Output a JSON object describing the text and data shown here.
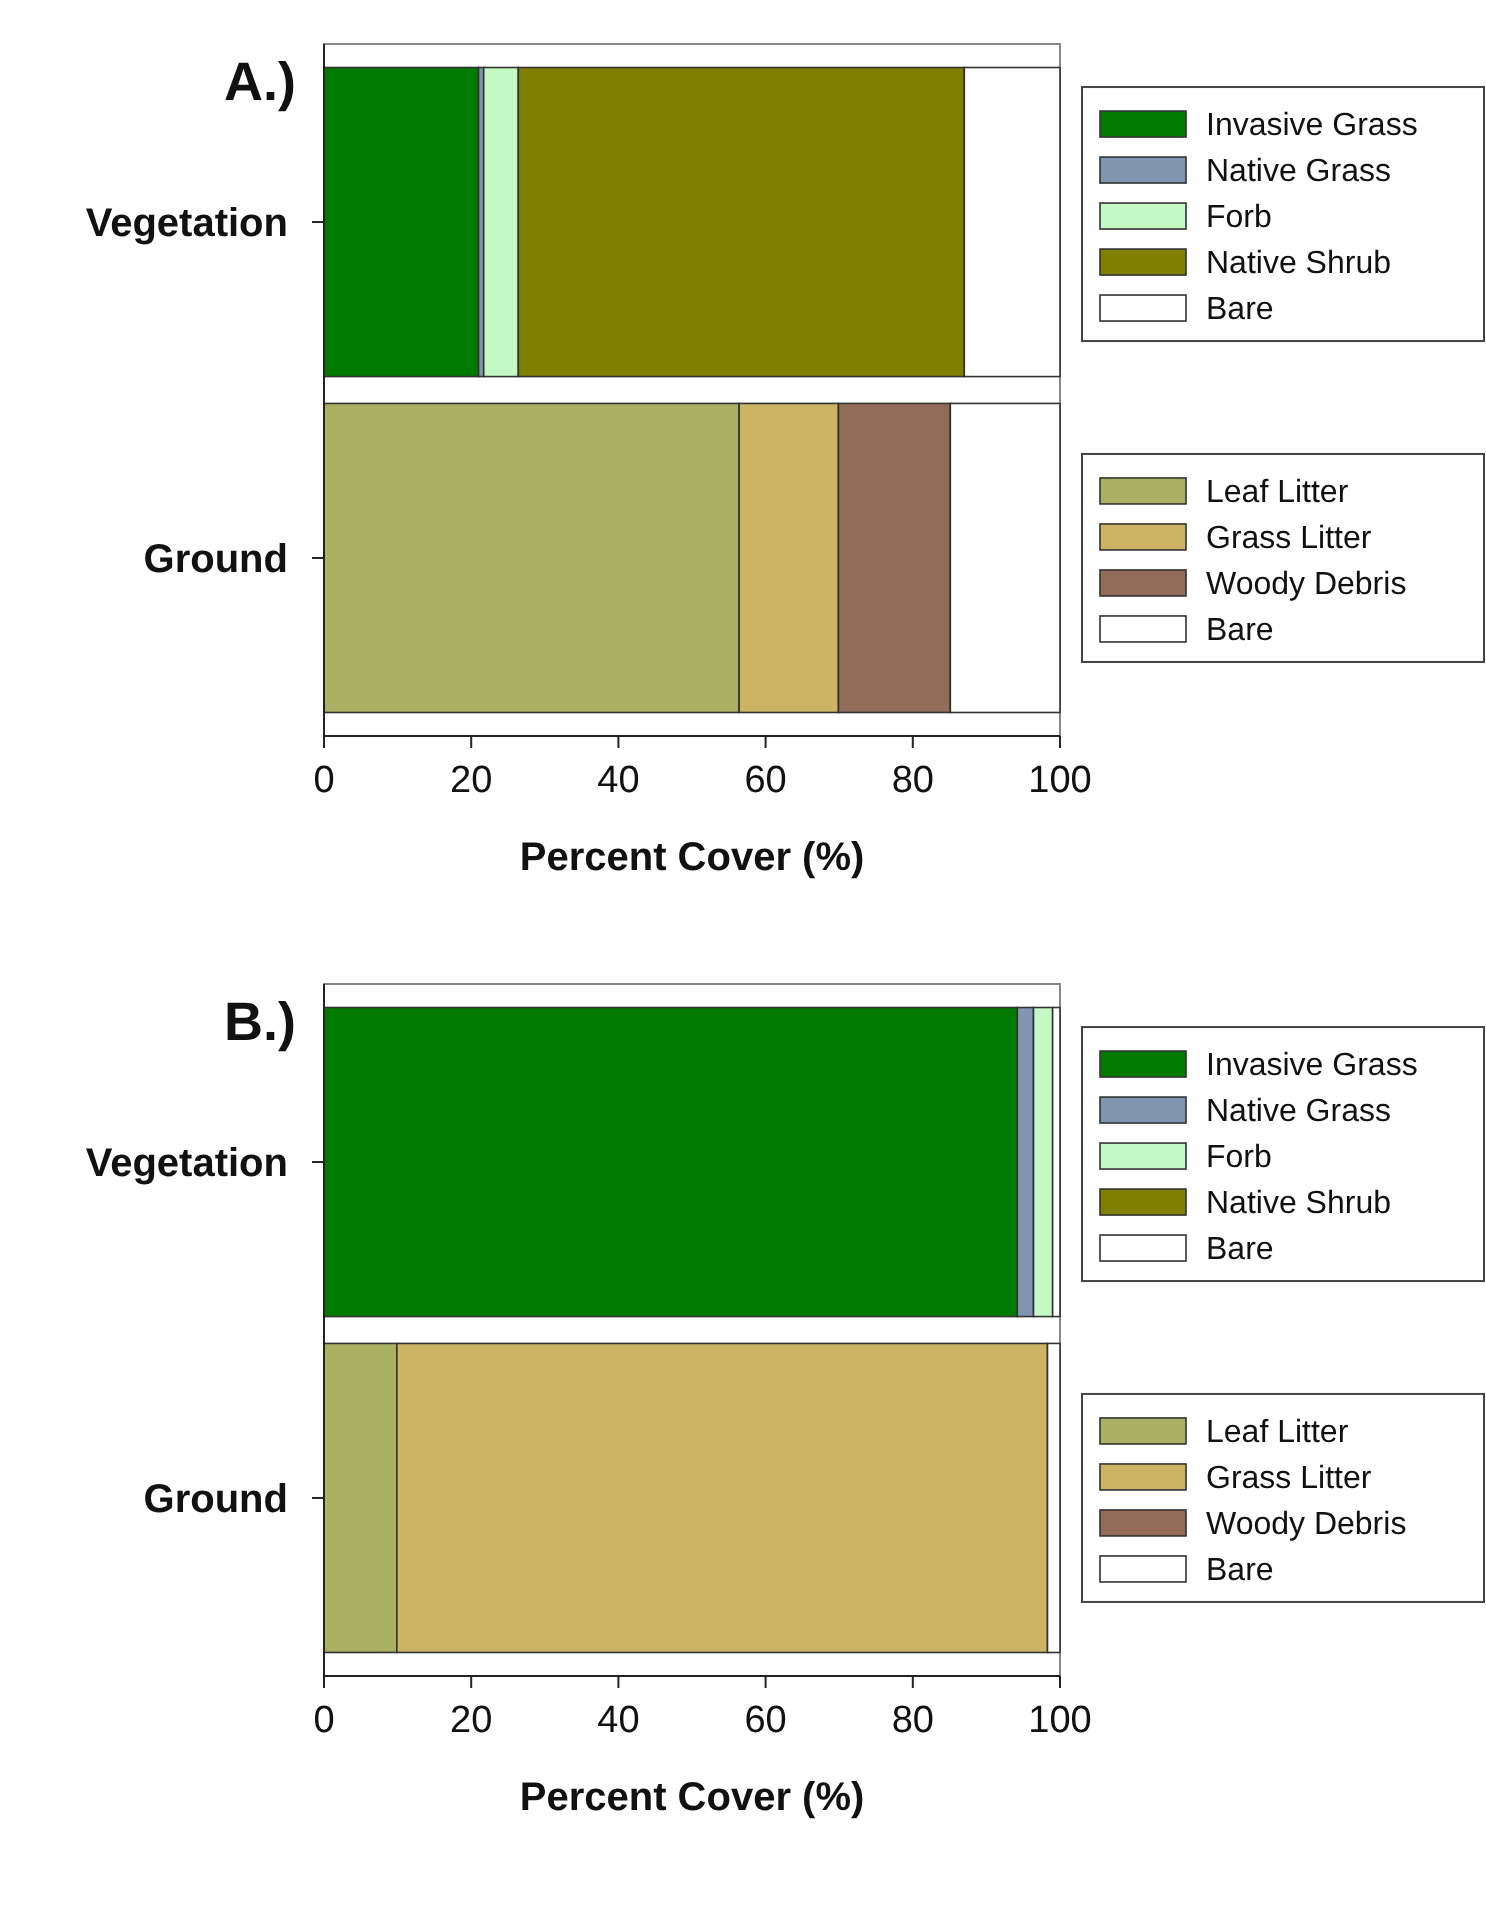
{
  "chart_data": [
    {
      "type": "bar",
      "title": "A.)",
      "orientation": "horizontal",
      "stacked": true,
      "categories": [
        "Vegetation",
        "Ground"
      ],
      "xlabel": "Percent Cover (%)",
      "xlim": [
        0,
        100
      ],
      "xticks": [
        0,
        20,
        40,
        60,
        80,
        100
      ],
      "legend": "right",
      "grid": false,
      "series": [
        {
          "name": "Invasive Grass",
          "color": "#007a00",
          "values": [
            21,
            null
          ]
        },
        {
          "name": "Native Grass",
          "color": "#8096b0",
          "values": [
            0.7,
            null
          ]
        },
        {
          "name": "Forb",
          "color": "#c4f8c4",
          "values": [
            4.7,
            null
          ]
        },
        {
          "name": "Native Shrub",
          "color": "#808000",
          "values": [
            60.6,
            null
          ]
        },
        {
          "name": "Bare",
          "color": "#ffffff",
          "values": [
            13,
            null
          ]
        },
        {
          "name": "Leaf Litter",
          "color": "#abb163",
          "values": [
            null,
            56.4
          ]
        },
        {
          "name": "Grass Litter",
          "color": "#ccb464",
          "values": [
            null,
            13.5
          ]
        },
        {
          "name": "Woody Debris",
          "color": "#926c58",
          "values": [
            null,
            15.2
          ]
        },
        {
          "name": "Bare",
          "color": "#ffffff",
          "values": [
            null,
            14.9
          ]
        }
      ]
    },
    {
      "type": "bar",
      "title": "B.)",
      "orientation": "horizontal",
      "stacked": true,
      "categories": [
        "Vegetation",
        "Ground"
      ],
      "xlabel": "Percent Cover (%)",
      "xlim": [
        0,
        100
      ],
      "xticks": [
        0,
        20,
        40,
        60,
        80,
        100
      ],
      "legend": "right",
      "grid": false,
      "series": [
        {
          "name": "Invasive Grass",
          "color": "#007a00",
          "values": [
            94.2,
            null
          ]
        },
        {
          "name": "Native Grass",
          "color": "#8096b0",
          "values": [
            2.2,
            null
          ]
        },
        {
          "name": "Forb",
          "color": "#c4f8c4",
          "values": [
            2.6,
            null
          ]
        },
        {
          "name": "Native Shrub",
          "color": "#808000",
          "values": [
            0,
            null
          ]
        },
        {
          "name": "Bare",
          "color": "#ffffff",
          "values": [
            1,
            null
          ]
        },
        {
          "name": "Leaf Litter",
          "color": "#abb163",
          "values": [
            null,
            9.9
          ]
        },
        {
          "name": "Grass Litter",
          "color": "#ccb464",
          "values": [
            null,
            88.4
          ]
        },
        {
          "name": "Woody Debris",
          "color": "#926c58",
          "values": [
            null,
            0
          ]
        },
        {
          "name": "Bare",
          "color": "#ffffff",
          "values": [
            null,
            1.7
          ]
        }
      ]
    }
  ]
}
